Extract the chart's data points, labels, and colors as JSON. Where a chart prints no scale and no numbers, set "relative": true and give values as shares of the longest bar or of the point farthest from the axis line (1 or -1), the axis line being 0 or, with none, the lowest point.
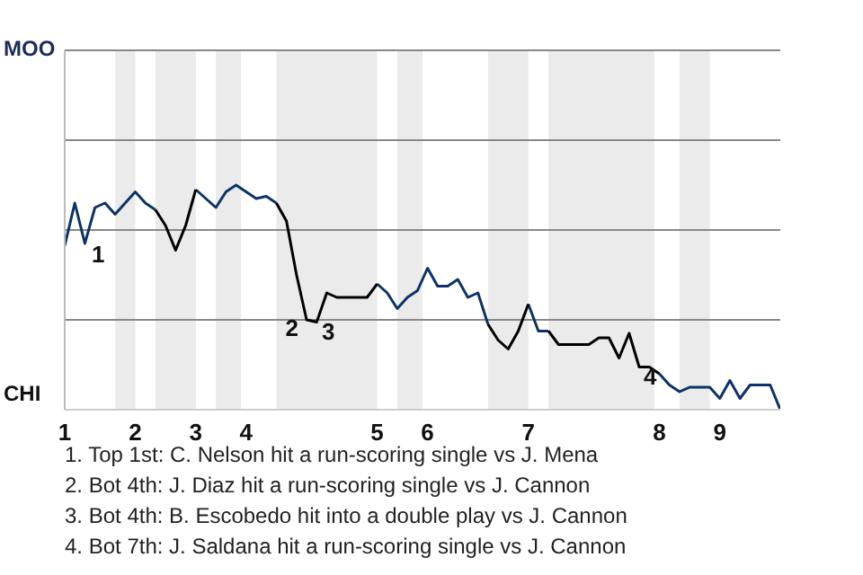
{
  "chart_data": {
    "type": "line",
    "relative": true,
    "categories": [
      "1",
      null,
      null,
      null,
      null,
      null,
      null,
      "2",
      null,
      null,
      null,
      null,
      null,
      "3",
      null,
      null,
      null,
      null,
      "4",
      null,
      null,
      null,
      null,
      null,
      null,
      null,
      null,
      null,
      null,
      null,
      null,
      "5",
      null,
      null,
      null,
      null,
      "6",
      null,
      null,
      null,
      null,
      null,
      null,
      null,
      null,
      null,
      "7",
      null,
      null,
      null,
      null,
      null,
      null,
      null,
      null,
      null,
      null,
      null,
      null,
      "8",
      null,
      null,
      null,
      null,
      null,
      "9",
      null,
      null,
      null,
      null,
      null,
      null
    ],
    "series": [
      {
        "color": "#0d3366",
        "values": [
          0.73,
          0.92,
          0.74,
          0.9,
          0.92,
          0.87,
          0.92,
          0.97,
          0.92,
          0.89,
          null,
          null,
          null,
          0.98,
          0.94,
          0.9,
          0.97,
          1,
          0.97,
          0.94,
          0.95,
          0.92,
          null,
          null,
          null,
          null,
          null,
          null,
          null,
          null,
          null,
          0.56,
          0.52,
          0.45,
          0.5,
          0.53,
          0.63,
          0.55,
          0.55,
          0.58,
          0.5,
          0.52,
          0.38,
          null,
          null,
          null,
          0.47,
          0.35,
          0.35,
          null,
          null,
          null,
          null,
          null,
          null,
          null,
          null,
          null,
          null,
          0.16,
          0.11,
          0.08,
          0.1,
          0.1,
          0.1,
          0.05,
          0.13,
          0.05,
          0.11,
          0.11,
          0.11,
          0
        ]
      },
      {
        "color": "#000000",
        "values": [
          null,
          null,
          null,
          null,
          null,
          null,
          null,
          null,
          null,
          0.89,
          0.82,
          0.71,
          0.82,
          0.98,
          null,
          null,
          null,
          null,
          null,
          null,
          null,
          0.92,
          0.84,
          0.6,
          0.4,
          0.39,
          0.52,
          0.5,
          0.5,
          0.5,
          0.5,
          0.56,
          null,
          null,
          null,
          null,
          null,
          null,
          null,
          null,
          null,
          null,
          0.38,
          0.31,
          0.27,
          0.35,
          0.47,
          null,
          0.35,
          0.29,
          0.29,
          0.29,
          0.29,
          0.32,
          0.32,
          0.23,
          0.34,
          0.19,
          0.19,
          0.16,
          null,
          null,
          null,
          null,
          null,
          null,
          null,
          null,
          null,
          null,
          null,
          null
        ]
      }
    ],
    "marker": "none",
    "legend": false,
    "ref_lines": [
      {
        "axis": "y",
        "value": 0.4,
        "color": "#888888"
      },
      {
        "axis": "y",
        "value": 0.8,
        "color": "#888888"
      },
      {
        "axis": "y",
        "value": 1.2,
        "color": "#888888"
      },
      {
        "axis": "y",
        "value": 1.6,
        "color": "#888888"
      }
    ],
    "annotations": [
      "1",
      "2",
      "3",
      "4",
      "MOO",
      "CHI",
      "1. Top 1st: C. Nelson hit a run-scoring single vs J. Mena",
      "2. Bot 4th: J. Diaz hit a run-scoring single vs J. Cannon",
      "3. Bot 4th: B. Escobedo hit into a double play vs J. Cannon",
      "4. Bot 7th: J. Saldana hit a run-scoring single vs J. Cannon"
    ]
  }
}
